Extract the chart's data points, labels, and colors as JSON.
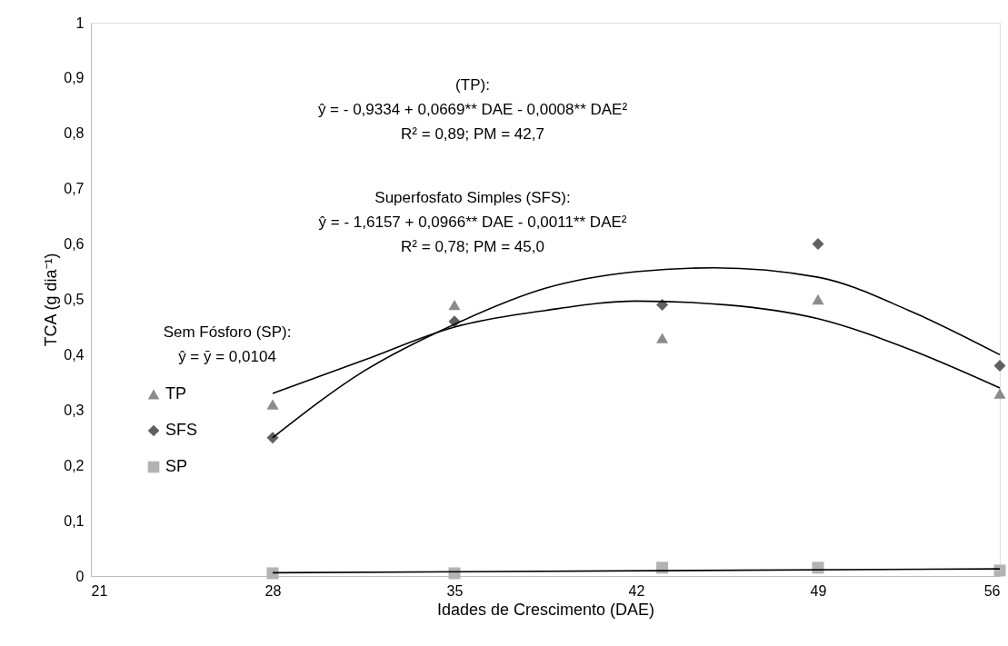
{
  "chart_data": {
    "type": "scatter",
    "xlabel": "Idades de Crescimento (DAE)",
    "ylabel": "TCA (g dia⁻¹)",
    "x": [
      28,
      35,
      43,
      49,
      56
    ],
    "series": [
      {
        "name": "TP",
        "marker": "triangle",
        "color": "#8c8c8c",
        "values": [
          0.31,
          0.49,
          0.43,
          0.5,
          0.33
        ]
      },
      {
        "name": "SFS",
        "marker": "diamond",
        "color": "#606060",
        "values": [
          0.25,
          0.46,
          0.49,
          0.6,
          0.38
        ]
      },
      {
        "name": "SP",
        "marker": "square",
        "color": "#b3b3b3",
        "values": [
          0.005,
          0.005,
          0.015,
          0.015,
          0.01
        ]
      },
      {
        "type": "line",
        "color": "#000000",
        "line_style": "solid",
        "x": [
          28,
          31.5,
          35,
          38.5,
          42,
          45.5,
          49,
          52.5,
          56
        ],
        "values": [
          0.33,
          0.39,
          0.45,
          0.48,
          0.497,
          0.49,
          0.465,
          0.41,
          0.34
        ]
      },
      {
        "type": "line",
        "color": "#000000",
        "line_style": "solid",
        "x": [
          28,
          31.5,
          35,
          38.5,
          42,
          45,
          49,
          52.5,
          56
        ],
        "values": [
          0.25,
          0.37,
          0.455,
          0.52,
          0.55,
          0.557,
          0.54,
          0.48,
          0.4
        ]
      },
      {
        "type": "line",
        "color": "#000000",
        "line_style": "solid",
        "x": [
          28,
          56
        ],
        "values": [
          0.006,
          0.013
        ]
      }
    ],
    "xlim": [
      21,
      56
    ],
    "xticks": [
      21,
      28,
      35,
      42,
      49,
      56
    ],
    "ylim": [
      0,
      1
    ],
    "yticks": [
      0,
      {
        "value": 0.1,
        "label": "0,1"
      },
      {
        "value": 0.2,
        "label": "0,2"
      },
      {
        "value": 0.3,
        "label": "0,3"
      },
      {
        "value": 0.4,
        "label": "0,4"
      },
      {
        "value": 0.5,
        "label": "0,5"
      },
      {
        "value": 0.6,
        "label": "0,6"
      },
      {
        "value": 0.7,
        "label": "0,7"
      },
      {
        "value": 0.8,
        "label": "0,8"
      },
      {
        "value": 0.9,
        "label": "0,9"
      },
      1
    ],
    "annotations": [
      "(TP):\nŷ = - 0,9334 + 0,0669** DAE - 0,0008** DAE²\nR² = 0,89; PM = 42,7",
      "Superfosfato Simples (SFS):\nŷ = - 1,6157 + 0,0966** DAE - 0,0011** DAE²\nR² = 0,78; PM = 45,0",
      "Sem Fósforo (SP):\nŷ = ȳ = 0,0104"
    ],
    "grid": false,
    "legend": "left"
  }
}
